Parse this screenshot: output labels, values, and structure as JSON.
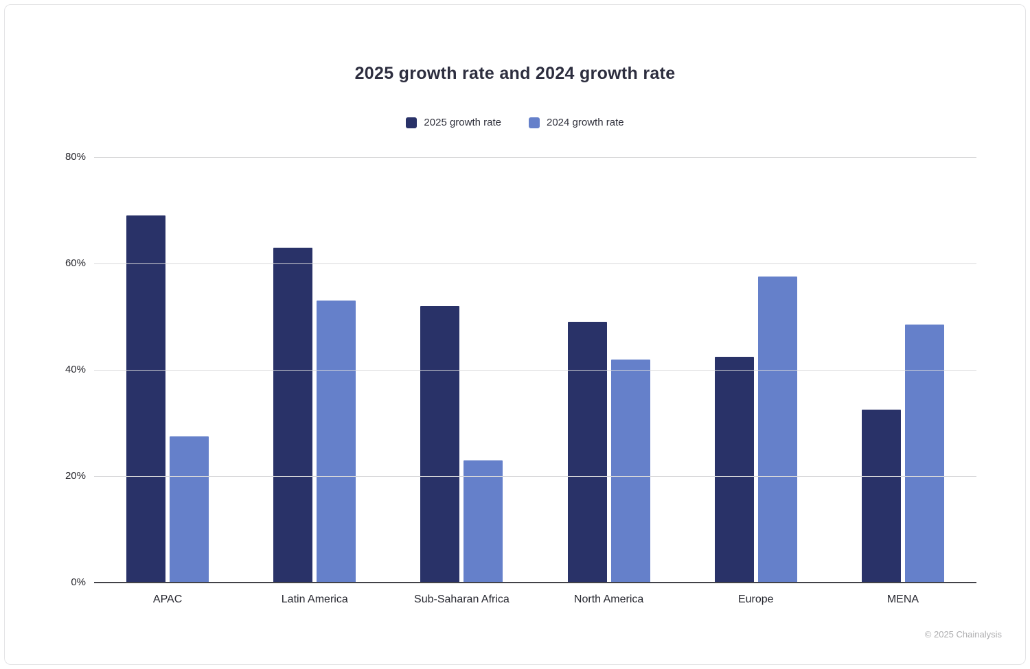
{
  "page": {
    "background": "#ffffff",
    "border_color": "#e4e4e6"
  },
  "chart_data": {
    "type": "bar",
    "title": "2025 growth rate and 2024 growth rate",
    "categories": [
      "APAC",
      "Latin America",
      "Sub-Saharan Africa",
      "North America",
      "Europe",
      "MENA"
    ],
    "series": [
      {
        "name": "2025 growth rate",
        "color": "#293268",
        "values": [
          69,
          63,
          52,
          49,
          42.5,
          32.5
        ]
      },
      {
        "name": "2024 growth rate",
        "color": "#6580ca",
        "values": [
          27.5,
          53,
          23,
          42,
          57.5,
          48.5
        ]
      }
    ],
    "ylim": [
      0,
      80
    ],
    "yticks": [
      0,
      20,
      40,
      60,
      80
    ],
    "ytick_labels": [
      "0%",
      "20%",
      "40%",
      "60%",
      "80%"
    ],
    "grid": true,
    "legend_position": "top",
    "xlabel": "",
    "ylabel": ""
  },
  "footer": {
    "copyright": "© 2025 Chainalysis"
  }
}
